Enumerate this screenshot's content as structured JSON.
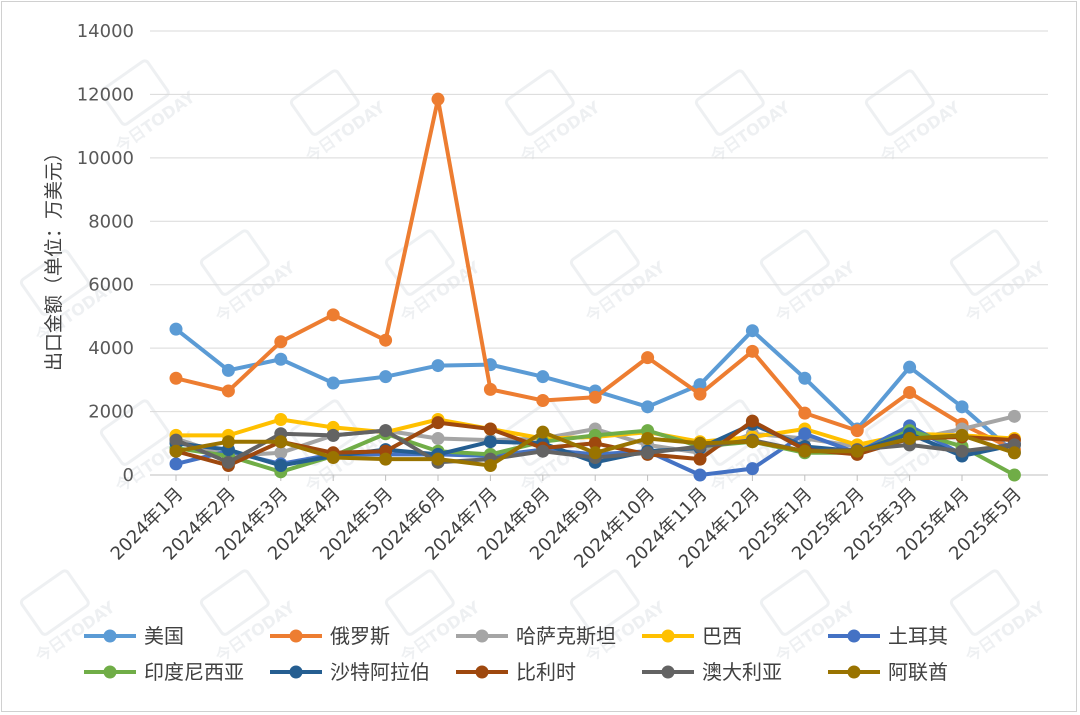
{
  "chart_data": {
    "type": "line",
    "title": "",
    "xlabel": "",
    "ylabel": "出口金额（单位：万美元）",
    "ylim": [
      0,
      14000
    ],
    "yticks": [
      0,
      2000,
      4000,
      6000,
      8000,
      10000,
      12000,
      14000
    ],
    "grid": "horizontal",
    "legend_position": "bottom",
    "categories": [
      "2024年1月",
      "2024年2月",
      "2024年3月",
      "2024年4月",
      "2024年5月",
      "2024年6月",
      "2024年7月",
      "2024年8月",
      "2024年9月",
      "2024年10月",
      "2024年11月",
      "2024年12月",
      "2025年1月",
      "2025年2月",
      "2025年3月",
      "2025年4月",
      "2025年5月"
    ],
    "series": [
      {
        "name": "美国",
        "color": "#5B9BD5",
        "values": [
          4600,
          3300,
          3650,
          2900,
          3100,
          3450,
          3480,
          3100,
          2650,
          2150,
          2850,
          4550,
          3050,
          1450,
          3400,
          2150,
          700
        ]
      },
      {
        "name": "俄罗斯",
        "color": "#ED7D31",
        "values": [
          3050,
          2650,
          4200,
          5050,
          4250,
          11850,
          2700,
          2350,
          2450,
          3700,
          2550,
          3900,
          1950,
          1400,
          2600,
          1600,
          800
        ]
      },
      {
        "name": "哈萨克斯坦",
        "color": "#A5A5A5",
        "values": [
          1150,
          600,
          700,
          1250,
          1400,
          1150,
          1100,
          1150,
          1450,
          950,
          700,
          1300,
          1150,
          900,
          1100,
          1450,
          1850
        ]
      },
      {
        "name": "巴西",
        "color": "#FFC000",
        "values": [
          1250,
          1250,
          1750,
          1500,
          1350,
          1750,
          1450,
          1150,
          1200,
          1350,
          1050,
          1200,
          1450,
          950,
          1300,
          1250,
          1150
        ]
      },
      {
        "name": "土耳其",
        "color": "#4472C4",
        "values": [
          350,
          750,
          350,
          650,
          650,
          650,
          600,
          800,
          650,
          750,
          0,
          200,
          1300,
          700,
          1550,
          650,
          1000
        ]
      },
      {
        "name": "印度尼西亚",
        "color": "#70AD47",
        "values": [
          850,
          600,
          100,
          600,
          1300,
          750,
          650,
          1050,
          1250,
          1400,
          900,
          1050,
          700,
          700,
          1400,
          900,
          0
        ]
      },
      {
        "name": "沙特阿拉伯",
        "color": "#255E91",
        "values": [
          1000,
          800,
          300,
          600,
          800,
          650,
          1050,
          1000,
          400,
          750,
          850,
          1600,
          900,
          750,
          1300,
          600,
          950
        ]
      },
      {
        "name": "比利时",
        "color": "#9E480E",
        "values": [
          750,
          300,
          1050,
          700,
          750,
          1650,
          1450,
          850,
          1000,
          650,
          500,
          1700,
          800,
          650,
          1150,
          1200,
          1100
        ]
      },
      {
        "name": "澳大利亚",
        "color": "#636363",
        "values": [
          1100,
          400,
          1300,
          1250,
          1400,
          400,
          500,
          750,
          550,
          700,
          900,
          1100,
          750,
          800,
          950,
          750,
          950
        ]
      },
      {
        "name": "阿联酋",
        "color": "#997300",
        "values": [
          750,
          1050,
          1050,
          550,
          500,
          500,
          300,
          1350,
          700,
          1150,
          1000,
          1050,
          750,
          750,
          1150,
          1250,
          700
        ]
      }
    ]
  },
  "watermark": "今日TODAY"
}
